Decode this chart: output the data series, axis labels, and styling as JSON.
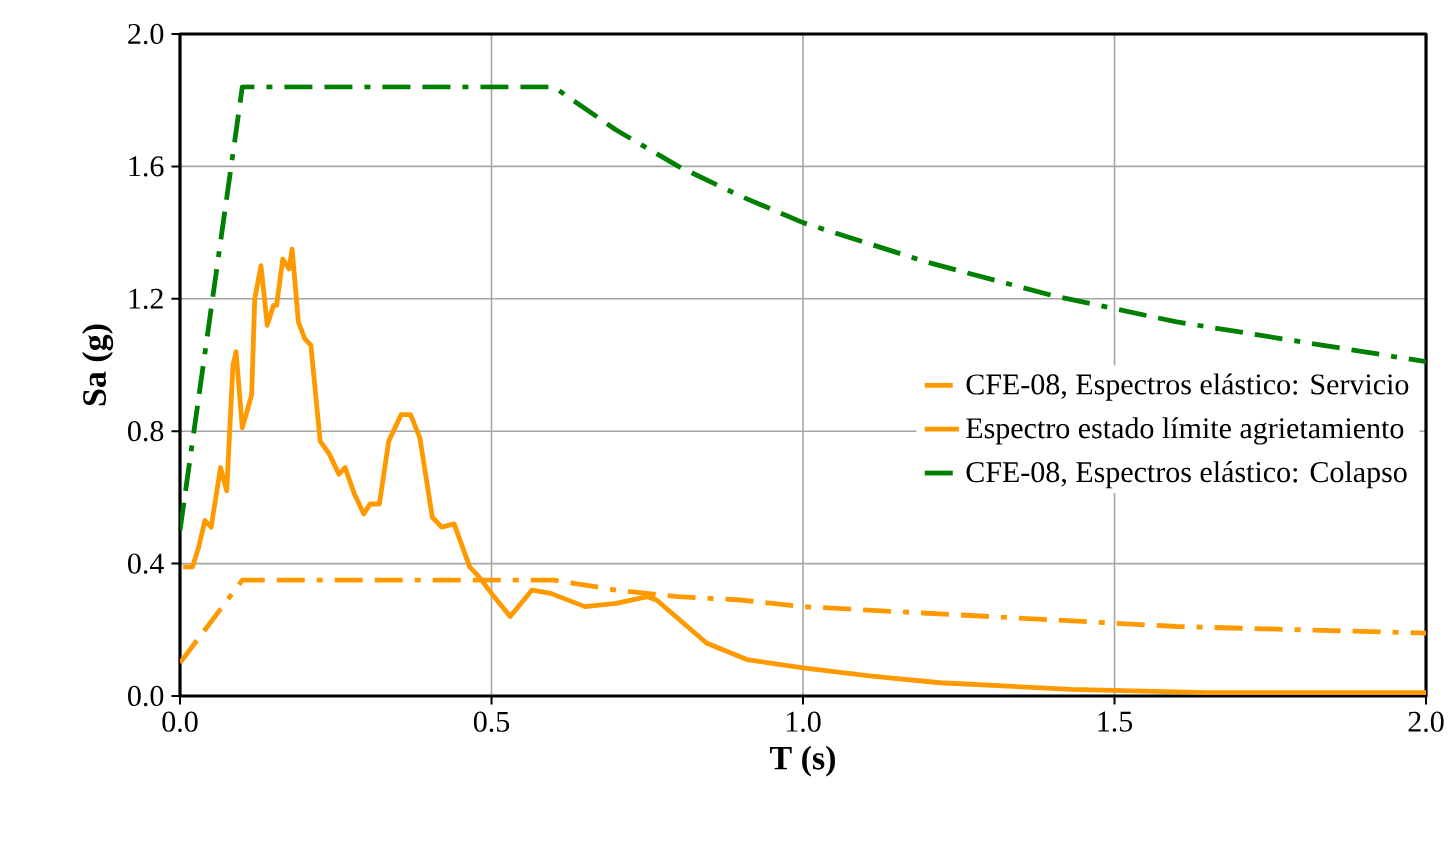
{
  "chart_data": {
    "type": "line",
    "xlabel": "T (s)",
    "ylabel": "Sa (g)",
    "xlim": [
      0,
      2
    ],
    "ylim": [
      0,
      2
    ],
    "xticks": [
      {
        "value": 0,
        "label": "0.0"
      },
      {
        "value": 0.5,
        "label": "0.5"
      },
      {
        "value": 1,
        "label": "1.0"
      },
      {
        "value": 1.5,
        "label": "1.5"
      },
      {
        "value": 2,
        "label": "2.0"
      }
    ],
    "yticks": [
      {
        "value": 0,
        "label": "0.0"
      },
      {
        "value": 0.4,
        "label": "0.4"
      },
      {
        "value": 0.8,
        "label": "0.8"
      },
      {
        "value": 1.2,
        "label": "1.2"
      },
      {
        "value": 1.6,
        "label": "1.6"
      },
      {
        "value": 2,
        "label": "2.0"
      }
    ],
    "grid": true,
    "legend": "right",
    "marker": "none",
    "series": [
      {
        "name": "CFE-08, Espectros elástico: Servicio",
        "color": "#ff9900",
        "line_style": "dashed",
        "x": [
          0,
          0.1,
          0.6,
          0.7,
          0.8,
          0.9,
          1.0,
          1.2,
          1.4,
          1.6,
          1.8,
          2.0
        ],
        "values": [
          0.1,
          0.35,
          0.35,
          0.32,
          0.3,
          0.29,
          0.27,
          0.25,
          0.23,
          0.21,
          0.2,
          0.19
        ]
      },
      {
        "name": "Espectro estado límite agrietamiento",
        "color": "#ff9900",
        "line_style": "solid",
        "x": [
          0.005,
          0.02,
          0.03,
          0.04,
          0.05,
          0.065,
          0.075,
          0.085,
          0.09,
          0.1,
          0.115,
          0.12,
          0.13,
          0.14,
          0.15,
          0.155,
          0.165,
          0.175,
          0.18,
          0.19,
          0.2,
          0.21,
          0.225,
          0.24,
          0.255,
          0.265,
          0.28,
          0.295,
          0.305,
          0.32,
          0.335,
          0.355,
          0.37,
          0.385,
          0.405,
          0.42,
          0.44,
          0.465,
          0.48,
          0.5,
          0.53,
          0.565,
          0.595,
          0.65,
          0.7,
          0.75,
          0.765,
          0.845,
          0.91,
          1.0,
          1.11,
          1.22,
          1.43,
          1.65,
          2.0
        ],
        "values": [
          0.39,
          0.39,
          0.45,
          0.53,
          0.51,
          0.69,
          0.62,
          1.0,
          1.04,
          0.81,
          0.91,
          1.2,
          1.3,
          1.12,
          1.18,
          1.18,
          1.32,
          1.29,
          1.35,
          1.13,
          1.08,
          1.06,
          0.77,
          0.73,
          0.67,
          0.69,
          0.61,
          0.55,
          0.58,
          0.58,
          0.77,
          0.85,
          0.85,
          0.78,
          0.54,
          0.51,
          0.52,
          0.39,
          0.36,
          0.31,
          0.24,
          0.32,
          0.31,
          0.27,
          0.28,
          0.3,
          0.29,
          0.16,
          0.11,
          0.085,
          0.06,
          0.04,
          0.02,
          0.01,
          0.01
        ]
      },
      {
        "name": "CFE-08, Espectros elástico: Colapso",
        "color": "#008000",
        "line_style": "dashed",
        "x": [
          0,
          0.1,
          0.6,
          0.7,
          0.8,
          0.9,
          1.0,
          1.2,
          1.4,
          1.6,
          1.8,
          2.0
        ],
        "values": [
          0.5,
          1.84,
          1.84,
          1.71,
          1.6,
          1.51,
          1.43,
          1.31,
          1.21,
          1.13,
          1.07,
          1.01
        ]
      }
    ]
  }
}
